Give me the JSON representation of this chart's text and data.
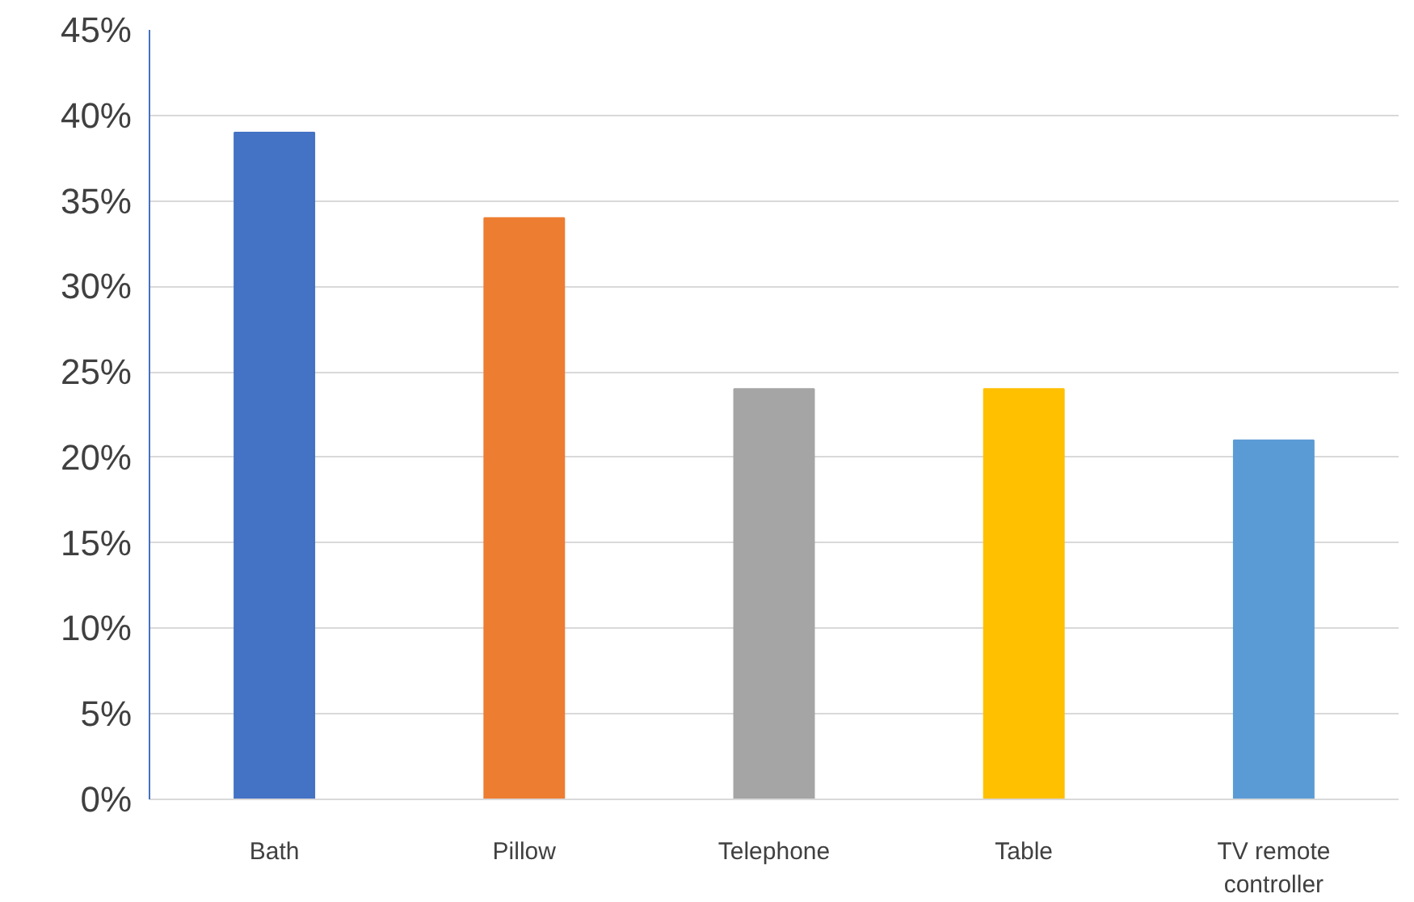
{
  "chart_data": {
    "type": "bar",
    "categories": [
      "Bath",
      "Pillow",
      "Telephone",
      "Table",
      "TV remote controller"
    ],
    "values": [
      39,
      34,
      24,
      24,
      21
    ],
    "colors": [
      "#4472c4",
      "#ed7d31",
      "#a5a5a5",
      "#ffc000",
      "#5b9bd5"
    ],
    "ylim": [
      0,
      45
    ],
    "yticks": [
      {
        "value": 0,
        "label": "0%"
      },
      {
        "value": 5,
        "label": "5%"
      },
      {
        "value": 10,
        "label": "10%"
      },
      {
        "value": 15,
        "label": "15%"
      },
      {
        "value": 20,
        "label": "20%"
      },
      {
        "value": 25,
        "label": "25%"
      },
      {
        "value": 30,
        "label": "30%"
      },
      {
        "value": 35,
        "label": "35%"
      },
      {
        "value": 40,
        "label": "40%"
      },
      {
        "value": 45,
        "label": "45%"
      }
    ],
    "grid": "y"
  }
}
